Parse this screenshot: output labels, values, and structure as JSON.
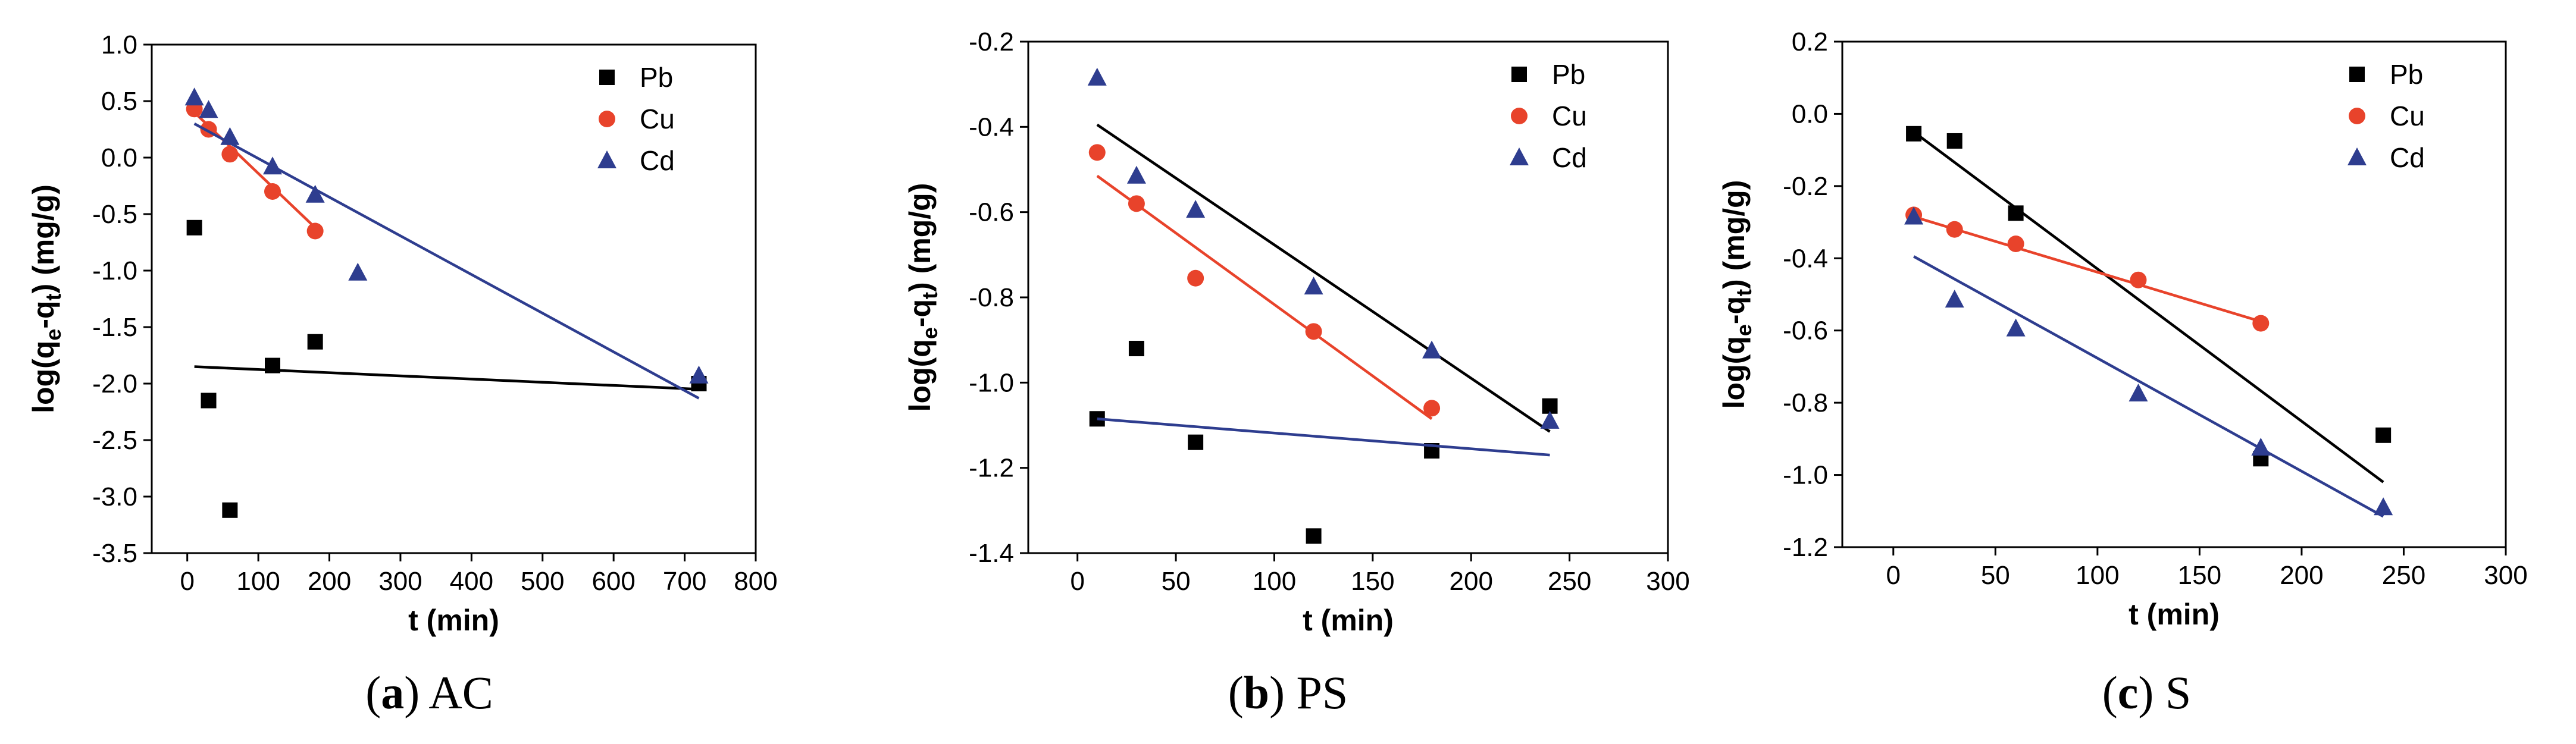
{
  "colors": {
    "Pb": "#000000",
    "Cu": "#e8432b",
    "Cd": "#2e3d8f"
  },
  "chart_data": [
    {
      "type": "scatter",
      "panel_letter": "a",
      "panel_name": "AC",
      "xlabel": "t (min)",
      "ylabel_parts": [
        "log(q",
        "e",
        "-q",
        "t",
        ") (mg/g)"
      ],
      "xlim": [
        -50,
        800
      ],
      "ylim": [
        -3.5,
        1.0
      ],
      "xticks": [
        0,
        100,
        200,
        300,
        400,
        500,
        600,
        700,
        800
      ],
      "yticks": [
        -3.5,
        -3.0,
        -2.5,
        -2.0,
        -1.5,
        -1.0,
        -0.5,
        0.0,
        0.5,
        1.0
      ],
      "yticks_labels": [
        "-3.5",
        "-3.0",
        "-2.5",
        "-2.0",
        "-1.5",
        "-1.0",
        "-0.5",
        "0.0",
        "0.5",
        "1.0"
      ],
      "legend_position": "top-right",
      "series": [
        {
          "name": "Pb",
          "marker": "square",
          "x": [
            10,
            30,
            60,
            120,
            180,
            720
          ],
          "y": [
            -0.62,
            -2.15,
            -3.12,
            -1.84,
            -1.63,
            -2.0
          ],
          "fit": [
            [
              10,
              -1.85
            ],
            [
              720,
              -2.05
            ]
          ]
        },
        {
          "name": "Cu",
          "marker": "circle",
          "x": [
            10,
            30,
            60,
            120,
            180
          ],
          "y": [
            0.43,
            0.25,
            0.03,
            -0.3,
            -0.65
          ],
          "fit": [
            [
              10,
              0.4
            ],
            [
              180,
              -0.62
            ]
          ]
        },
        {
          "name": "Cd",
          "marker": "triangle",
          "x": [
            10,
            30,
            60,
            120,
            180,
            240,
            720
          ],
          "y": [
            0.53,
            0.42,
            0.18,
            -0.08,
            -0.33,
            -1.02,
            -1.93
          ],
          "fit": [
            [
              10,
              0.3
            ],
            [
              720,
              -2.13
            ]
          ]
        }
      ]
    },
    {
      "type": "scatter",
      "panel_letter": "b",
      "panel_name": "PS",
      "xlabel": "t (min)",
      "ylabel_parts": [
        "log(q",
        "e",
        "-q",
        "t",
        ") (mg/g)"
      ],
      "xlim": [
        -25,
        300
      ],
      "ylim": [
        -1.4,
        -0.2
      ],
      "xticks": [
        0,
        50,
        100,
        150,
        200,
        250,
        300
      ],
      "yticks": [
        -1.4,
        -1.2,
        -1.0,
        -0.8,
        -0.6,
        -0.4,
        -0.2
      ],
      "yticks_labels": [
        "-1.4",
        "-1.2",
        "-1.0",
        "-0.8",
        "-0.6",
        "-0.4",
        "-0.2"
      ],
      "legend_position": "top-right",
      "series": [
        {
          "name": "Pb",
          "marker": "square",
          "x": [
            10,
            30,
            60,
            120,
            180,
            240
          ],
          "y": [
            -1.085,
            -0.92,
            -1.14,
            -1.36,
            -1.16,
            -1.055
          ],
          "fit": [
            [
              10,
              -0.395
            ],
            [
              240,
              -1.115
            ]
          ]
        },
        {
          "name": "Cu",
          "marker": "circle",
          "x": [
            10,
            30,
            60,
            120,
            180
          ],
          "y": [
            -0.46,
            -0.58,
            -0.755,
            -0.88,
            -1.06
          ],
          "fit": [
            [
              10,
              -0.515
            ],
            [
              180,
              -1.085
            ]
          ]
        },
        {
          "name": "Cd",
          "marker": "triangle",
          "x": [
            10,
            30,
            60,
            120,
            180,
            240
          ],
          "y": [
            -0.285,
            -0.515,
            -0.595,
            -0.775,
            -0.925,
            -1.09
          ],
          "fit": [
            [
              10,
              -1.085
            ],
            [
              240,
              -1.17
            ]
          ]
        }
      ]
    },
    {
      "type": "scatter",
      "panel_letter": "c",
      "panel_name": "S",
      "xlabel": "t (min)",
      "ylabel_parts": [
        "log(q",
        "e",
        "-q",
        "t",
        ") (mg/g)"
      ],
      "xlim": [
        -25,
        300
      ],
      "ylim": [
        -1.2,
        0.2
      ],
      "xticks": [
        0,
        50,
        100,
        150,
        200,
        250,
        300
      ],
      "yticks": [
        -1.2,
        -1.0,
        -0.8,
        -0.6,
        -0.4,
        -0.2,
        0.0,
        0.2
      ],
      "yticks_labels": [
        "-1.2",
        "-1.0",
        "-0.8",
        "-0.6",
        "-0.4",
        "-0.2",
        "0.0",
        "0.2"
      ],
      "legend_position": "top-right",
      "series": [
        {
          "name": "Pb",
          "marker": "square",
          "x": [
            10,
            30,
            60,
            180,
            240
          ],
          "y": [
            -0.055,
            -0.075,
            -0.275,
            -0.955,
            -0.89
          ],
          "fit": [
            [
              10,
              -0.05
            ],
            [
              240,
              -1.02
            ]
          ]
        },
        {
          "name": "Cu",
          "marker": "circle",
          "x": [
            10,
            30,
            60,
            120,
            180
          ],
          "y": [
            -0.28,
            -0.32,
            -0.36,
            -0.46,
            -0.58
          ],
          "fit": [
            [
              10,
              -0.285
            ],
            [
              180,
              -0.575
            ]
          ]
        },
        {
          "name": "Cd",
          "marker": "triangle",
          "x": [
            10,
            30,
            60,
            120,
            180,
            240
          ],
          "y": [
            -0.285,
            -0.515,
            -0.595,
            -0.775,
            -0.925,
            -1.09
          ],
          "fit": [
            [
              10,
              -0.395
            ],
            [
              240,
              -1.115
            ]
          ]
        }
      ]
    }
  ]
}
